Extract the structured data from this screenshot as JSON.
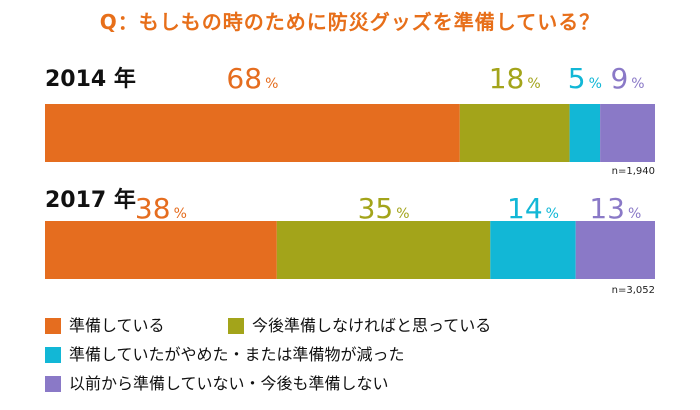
{
  "chart_data": {
    "type": "bar",
    "title": "Q：もしもの時のために防災グッズを準備している？",
    "categories": [
      "2014 年",
      "2017 年"
    ],
    "sample_sizes": [
      "n=1,940",
      "n=3,052"
    ],
    "unit": "%",
    "series": [
      {
        "name": "準備している",
        "values": [
          68,
          38
        ],
        "color": "#e56d1f"
      },
      {
        "name": "今後準備しなければと思っている",
        "values": [
          18,
          35
        ],
        "color": "#a3a41a"
      },
      {
        "name": "準備していたがやめた・または準備物が減った",
        "values": [
          5,
          14
        ],
        "color": "#12b7d6"
      },
      {
        "name": "以前から準備していない・今後も準備しない",
        "values": [
          9,
          13
        ],
        "color": "#8a79c7"
      }
    ],
    "xlim": [
      0,
      100
    ],
    "grid": false,
    "legend_position": "bottom",
    "stacked": true,
    "orientation": "horizontal"
  }
}
